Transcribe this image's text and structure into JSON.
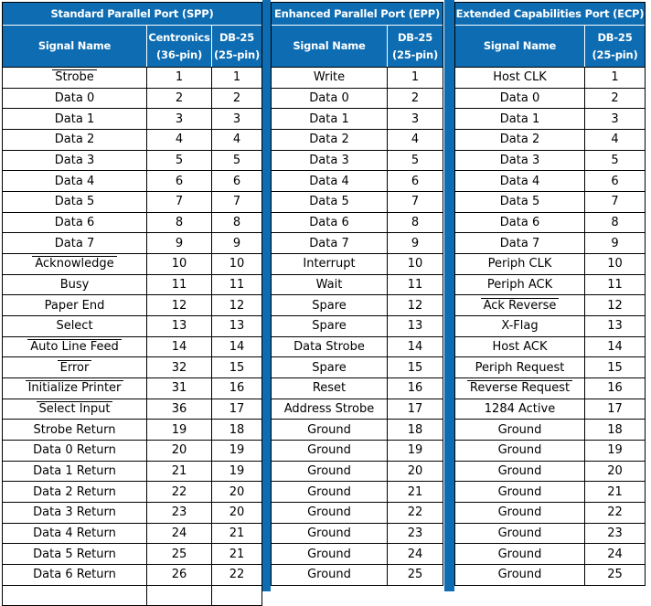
{
  "colors": {
    "header_bg": "#0d6cb2",
    "header_text": "#ffffff",
    "cell_border": "#000000",
    "header_divider": "#ffffff",
    "body_text": "#000000",
    "background": "#ffffff"
  },
  "tables": [
    {
      "id": "spp",
      "title": "Standard Parallel Port (SPP)",
      "columns": [
        {
          "label": "Signal Name",
          "sub": ""
        },
        {
          "label": "Centronics",
          "sub": "(36-pin)"
        },
        {
          "label": "DB-25",
          "sub": "(25-pin)"
        }
      ],
      "rows": [
        {
          "signal": "Strobe",
          "overline": true,
          "pins": [
            "1",
            "1"
          ]
        },
        {
          "signal": "Data 0",
          "overline": false,
          "pins": [
            "2",
            "2"
          ]
        },
        {
          "signal": "Data 1",
          "overline": false,
          "pins": [
            "3",
            "3"
          ]
        },
        {
          "signal": "Data 2",
          "overline": false,
          "pins": [
            "4",
            "4"
          ]
        },
        {
          "signal": "Data 3",
          "overline": false,
          "pins": [
            "5",
            "5"
          ]
        },
        {
          "signal": "Data 4",
          "overline": false,
          "pins": [
            "6",
            "6"
          ]
        },
        {
          "signal": "Data 5",
          "overline": false,
          "pins": [
            "7",
            "7"
          ]
        },
        {
          "signal": "Data 6",
          "overline": false,
          "pins": [
            "8",
            "8"
          ]
        },
        {
          "signal": "Data 7",
          "overline": false,
          "pins": [
            "9",
            "9"
          ]
        },
        {
          "signal": "Acknowledge",
          "overline": true,
          "pins": [
            "10",
            "10"
          ]
        },
        {
          "signal": "Busy",
          "overline": false,
          "pins": [
            "11",
            "11"
          ]
        },
        {
          "signal": "Paper End",
          "overline": false,
          "pins": [
            "12",
            "12"
          ]
        },
        {
          "signal": "Select",
          "overline": false,
          "pins": [
            "13",
            "13"
          ]
        },
        {
          "signal": "Auto Line Feed",
          "overline": true,
          "pins": [
            "14",
            "14"
          ]
        },
        {
          "signal": "Error",
          "overline": true,
          "pins": [
            "32",
            "15"
          ]
        },
        {
          "signal": "Initialize Printer",
          "overline": true,
          "pins": [
            "31",
            "16"
          ]
        },
        {
          "signal": "Select Input",
          "overline": true,
          "pins": [
            "36",
            "17"
          ]
        },
        {
          "signal": "Strobe Return",
          "overline": false,
          "pins": [
            "19",
            "18"
          ]
        },
        {
          "signal": "Data 0 Return",
          "overline": false,
          "pins": [
            "20",
            "19"
          ]
        },
        {
          "signal": "Data 1 Return",
          "overline": false,
          "pins": [
            "21",
            "19"
          ]
        },
        {
          "signal": "Data 2 Return",
          "overline": false,
          "pins": [
            "22",
            "20"
          ]
        },
        {
          "signal": "Data 3 Return",
          "overline": false,
          "pins": [
            "23",
            "20"
          ]
        },
        {
          "signal": "Data 4 Return",
          "overline": false,
          "pins": [
            "24",
            "21"
          ]
        },
        {
          "signal": "Data 5 Return",
          "overline": false,
          "pins": [
            "25",
            "21"
          ]
        },
        {
          "signal": "Data 6 Return",
          "overline": false,
          "pins": [
            "26",
            "22"
          ]
        },
        {
          "signal": "",
          "overline": false,
          "pins": [
            "",
            ""
          ]
        }
      ]
    },
    {
      "id": "epp",
      "title": "Enhanced Parallel Port (EPP)",
      "columns": [
        {
          "label": "Signal Name",
          "sub": ""
        },
        {
          "label": "DB-25",
          "sub": "(25-pin)"
        }
      ],
      "rows": [
        {
          "signal": "Write",
          "overline": false,
          "pins": [
            "1"
          ]
        },
        {
          "signal": "Data 0",
          "overline": false,
          "pins": [
            "2"
          ]
        },
        {
          "signal": "Data 1",
          "overline": false,
          "pins": [
            "3"
          ]
        },
        {
          "signal": "Data 2",
          "overline": false,
          "pins": [
            "4"
          ]
        },
        {
          "signal": "Data 3",
          "overline": false,
          "pins": [
            "5"
          ]
        },
        {
          "signal": "Data 4",
          "overline": false,
          "pins": [
            "6"
          ]
        },
        {
          "signal": "Data 5",
          "overline": false,
          "pins": [
            "7"
          ]
        },
        {
          "signal": "Data 6",
          "overline": false,
          "pins": [
            "8"
          ]
        },
        {
          "signal": "Data 7",
          "overline": false,
          "pins": [
            "9"
          ]
        },
        {
          "signal": "Interrupt",
          "overline": false,
          "pins": [
            "10"
          ]
        },
        {
          "signal": "Wait",
          "overline": false,
          "pins": [
            "11"
          ]
        },
        {
          "signal": "Spare",
          "overline": false,
          "pins": [
            "12"
          ]
        },
        {
          "signal": "Spare",
          "overline": false,
          "pins": [
            "13"
          ]
        },
        {
          "signal": "Data Strobe",
          "overline": false,
          "pins": [
            "14"
          ]
        },
        {
          "signal": "Spare",
          "overline": false,
          "pins": [
            "15"
          ]
        },
        {
          "signal": "Reset",
          "overline": false,
          "pins": [
            "16"
          ]
        },
        {
          "signal": "Address Strobe",
          "overline": false,
          "pins": [
            "17"
          ]
        },
        {
          "signal": "Ground",
          "overline": false,
          "pins": [
            "18"
          ]
        },
        {
          "signal": "Ground",
          "overline": false,
          "pins": [
            "19"
          ]
        },
        {
          "signal": "Ground",
          "overline": false,
          "pins": [
            "20"
          ]
        },
        {
          "signal": "Ground",
          "overline": false,
          "pins": [
            "21"
          ]
        },
        {
          "signal": "Ground",
          "overline": false,
          "pins": [
            "22"
          ]
        },
        {
          "signal": "Ground",
          "overline": false,
          "pins": [
            "23"
          ]
        },
        {
          "signal": "Ground",
          "overline": false,
          "pins": [
            "24"
          ]
        },
        {
          "signal": "Ground",
          "overline": false,
          "pins": [
            "25"
          ]
        }
      ]
    },
    {
      "id": "ecp",
      "title": "Extended Capabilities Port (ECP)",
      "columns": [
        {
          "label": "Signal Name",
          "sub": ""
        },
        {
          "label": "DB-25",
          "sub": "(25-pin)"
        }
      ],
      "rows": [
        {
          "signal": "Host CLK",
          "overline": false,
          "pins": [
            "1"
          ]
        },
        {
          "signal": "Data 0",
          "overline": false,
          "pins": [
            "2"
          ]
        },
        {
          "signal": "Data 1",
          "overline": false,
          "pins": [
            "3"
          ]
        },
        {
          "signal": "Data 2",
          "overline": false,
          "pins": [
            "4"
          ]
        },
        {
          "signal": "Data 3",
          "overline": false,
          "pins": [
            "5"
          ]
        },
        {
          "signal": "Data 4",
          "overline": false,
          "pins": [
            "6"
          ]
        },
        {
          "signal": "Data 5",
          "overline": false,
          "pins": [
            "7"
          ]
        },
        {
          "signal": "Data 6",
          "overline": false,
          "pins": [
            "8"
          ]
        },
        {
          "signal": "Data 7",
          "overline": false,
          "pins": [
            "9"
          ]
        },
        {
          "signal": "Periph CLK",
          "overline": false,
          "pins": [
            "10"
          ]
        },
        {
          "signal": "Periph ACK",
          "overline": false,
          "pins": [
            "11"
          ]
        },
        {
          "signal": "Ack Reverse",
          "overline": true,
          "pins": [
            "12"
          ]
        },
        {
          "signal": "X-Flag",
          "overline": false,
          "pins": [
            "13"
          ]
        },
        {
          "signal": "Host ACK",
          "overline": false,
          "pins": [
            "14"
          ]
        },
        {
          "signal": "Periph Request",
          "overline": false,
          "pins": [
            "15"
          ]
        },
        {
          "signal": "Reverse Request",
          "overline": true,
          "pins": [
            "16"
          ]
        },
        {
          "signal": "1284 Active",
          "overline": false,
          "pins": [
            "17"
          ]
        },
        {
          "signal": "Ground",
          "overline": false,
          "pins": [
            "18"
          ]
        },
        {
          "signal": "Ground",
          "overline": false,
          "pins": [
            "19"
          ]
        },
        {
          "signal": "Ground",
          "overline": false,
          "pins": [
            "20"
          ]
        },
        {
          "signal": "Ground",
          "overline": false,
          "pins": [
            "21"
          ]
        },
        {
          "signal": "Ground",
          "overline": false,
          "pins": [
            "22"
          ]
        },
        {
          "signal": "Ground",
          "overline": false,
          "pins": [
            "23"
          ]
        },
        {
          "signal": "Ground",
          "overline": false,
          "pins": [
            "24"
          ]
        },
        {
          "signal": "Ground",
          "overline": false,
          "pins": [
            "25"
          ]
        }
      ]
    }
  ]
}
